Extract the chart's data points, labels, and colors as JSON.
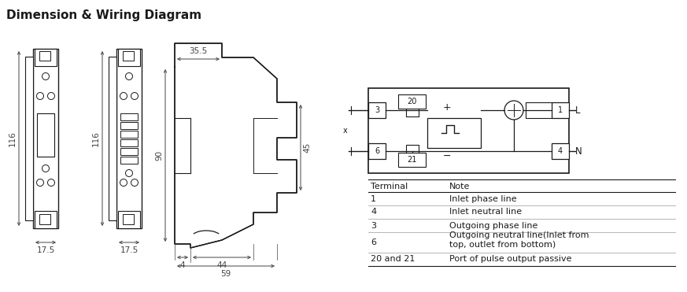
{
  "title": "Dimension & Wiring Diagram",
  "bg_color": "#ffffff",
  "line_color": "#1a1a1a",
  "dim_color": "#444444",
  "gray_line": "#aaaaaa",
  "table_headers": [
    "Terminal",
    "Note"
  ],
  "table_rows": [
    [
      "1",
      "Inlet phase line"
    ],
    [
      "4",
      "Inlet neutral line"
    ],
    [
      "3",
      "Outgoing phase line"
    ],
    [
      "6",
      "Outgoing neutral line(Inlet from\ntop, outlet from bottom)"
    ],
    [
      "20 and 21",
      "Port of pulse output passive"
    ]
  ],
  "dim_labels": {
    "h116_1": "116",
    "h116_2": "116",
    "w17_1": "17.5",
    "w17_2": "17.5",
    "d90": "90",
    "d35": "35.5",
    "d45": "45",
    "b4": "4",
    "b44": "44",
    "b59": "59"
  }
}
